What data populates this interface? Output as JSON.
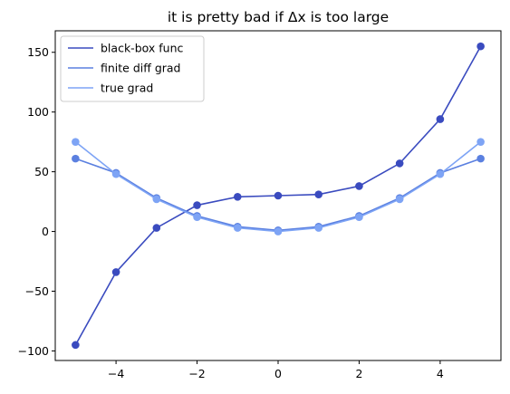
{
  "chart_data": {
    "type": "line",
    "title": "it is pretty bad if Δx is too large",
    "xlabel": "",
    "ylabel": "",
    "xlim": [
      -5.5,
      5.5
    ],
    "ylim": [
      -108,
      168
    ],
    "xticks": [
      -4,
      -2,
      0,
      2,
      4
    ],
    "yticks": [
      -100,
      -50,
      0,
      50,
      100,
      150
    ],
    "xtick_labels": [
      "−4",
      "−2",
      "0",
      "2",
      "4"
    ],
    "ytick_labels": [
      "−100",
      "−50",
      "0",
      "50",
      "100",
      "150"
    ],
    "x": [
      -5,
      -4,
      -3,
      -2,
      -1,
      0,
      1,
      2,
      3,
      4,
      5
    ],
    "grid": false,
    "legend_position": "upper-left",
    "series": [
      {
        "name": "black-box func",
        "color": "#3a4bbf",
        "values": [
          -95,
          -34,
          3,
          22,
          29,
          30,
          31,
          38,
          57,
          94,
          155
        ]
      },
      {
        "name": "finite diff grad",
        "color": "#5b80e0",
        "values": [
          61,
          49,
          28,
          13,
          4,
          1,
          4,
          13,
          28,
          49,
          61
        ]
      },
      {
        "name": "true grad",
        "color": "#7ea4f5",
        "values": [
          75,
          48,
          27,
          12,
          3,
          0,
          3,
          12,
          27,
          48,
          75
        ]
      }
    ]
  }
}
